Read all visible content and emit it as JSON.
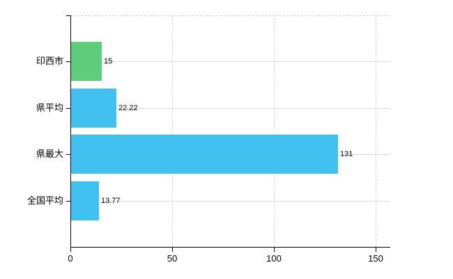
{
  "chart_data": {
    "type": "bar",
    "orientation": "horizontal",
    "title": "",
    "xlabel": "",
    "ylabel": "",
    "categories": [
      "印西市",
      "県平均",
      "県最大",
      "全国平均"
    ],
    "values": [
      15,
      22.22,
      131,
      13.77
    ],
    "value_labels": [
      "15",
      "22.22",
      "131",
      "13.77"
    ],
    "bar_colors": [
      "#5ecd7b",
      "#41c1f0",
      "#41c1f0",
      "#41c1f0"
    ],
    "x_ticks": [
      0,
      50,
      100,
      150
    ],
    "x_tick_labels": [
      "0",
      "50",
      "100",
      "150"
    ],
    "xlim": [
      0,
      157
    ],
    "grid": true,
    "legend": "none",
    "colors": {
      "background": "#ffffff",
      "axis": "#000000",
      "h_gridline": "#d7ddd7",
      "v_gridline": "#d8d3d8",
      "top_border": "#d5d0d5",
      "text": "#000000"
    }
  }
}
